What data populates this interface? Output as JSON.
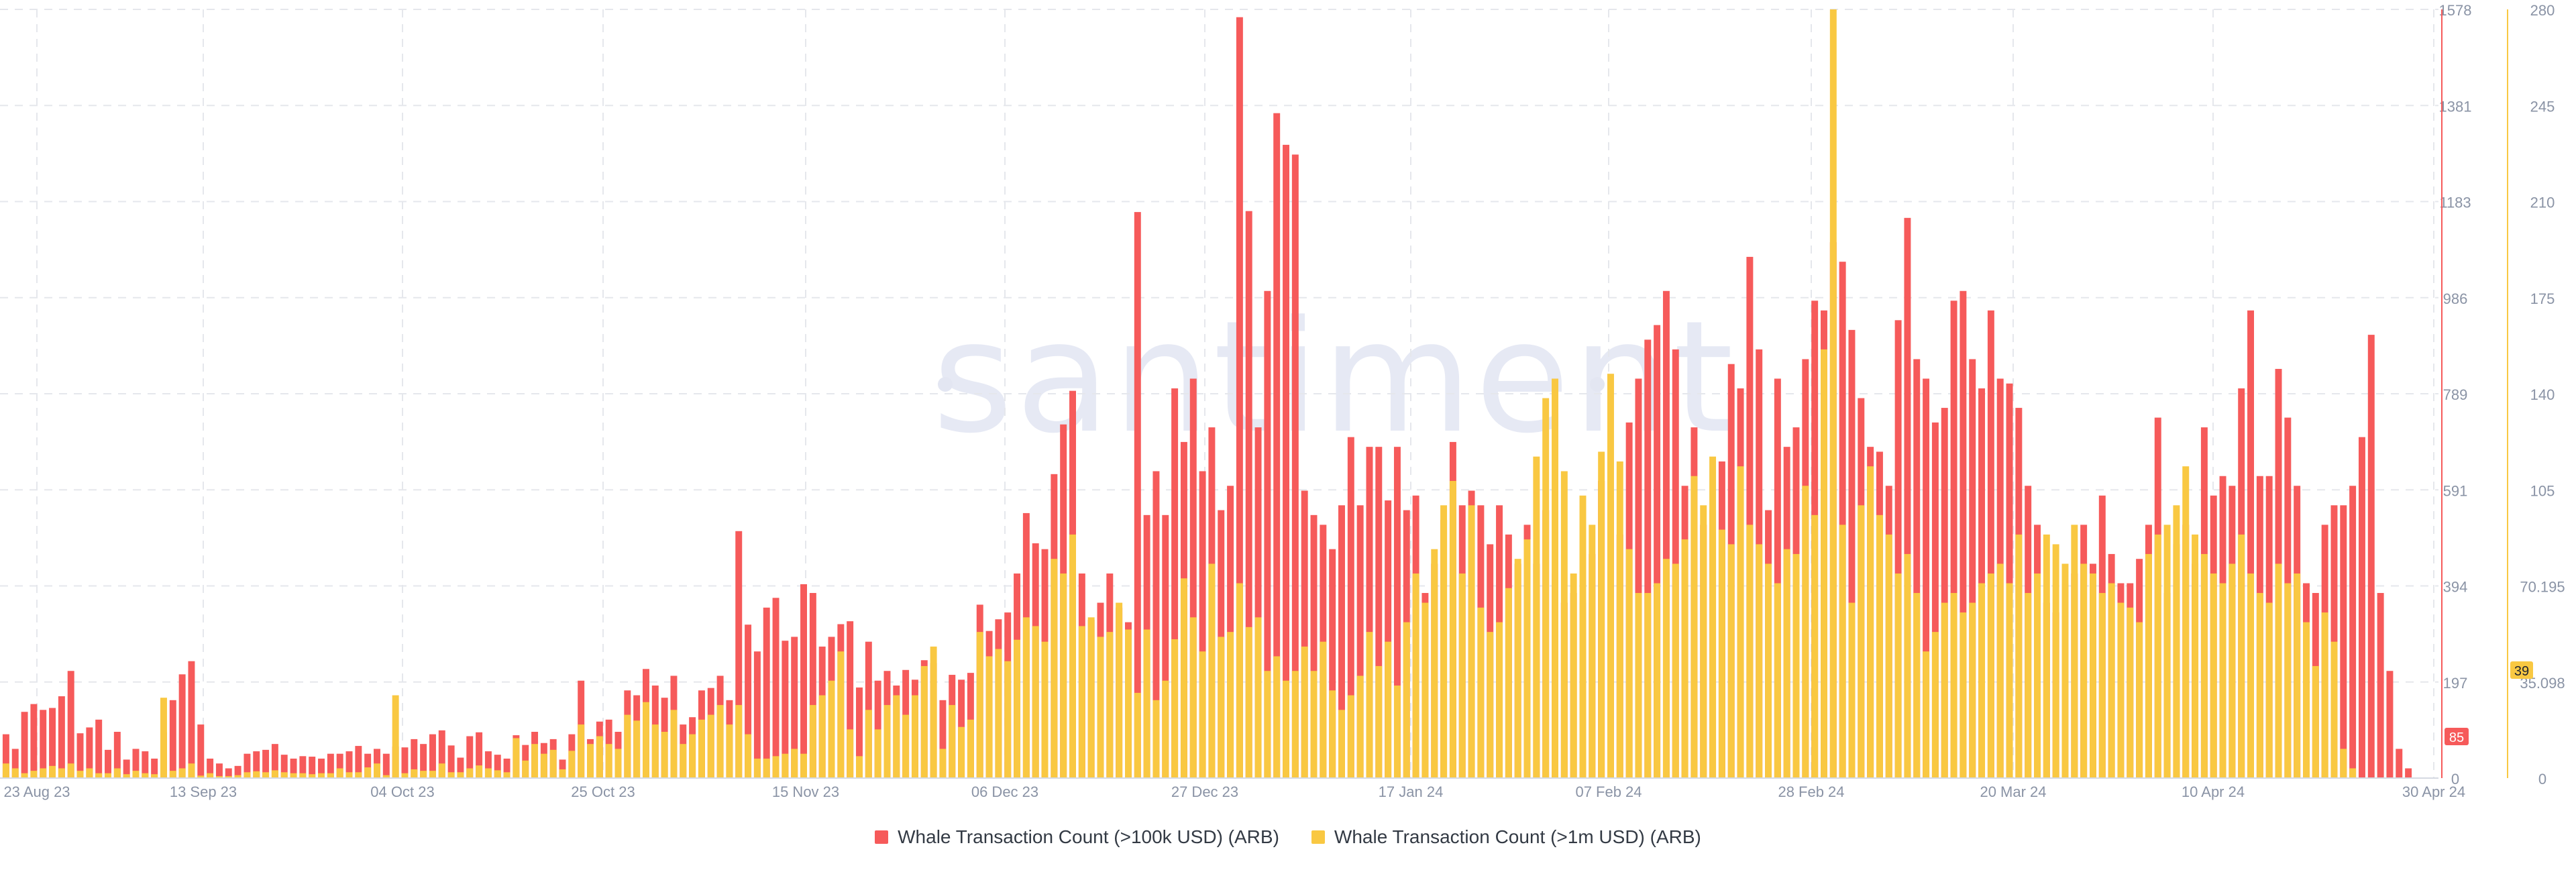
{
  "watermark": "santiment",
  "colors": {
    "series_100k": "#f65a5a",
    "series_1m": "#f9c842",
    "grid": "#e5e7ec",
    "axis_text": "#8a93a5"
  },
  "legend": [
    {
      "label": "Whale Transaction Count (>100k USD) (ARB)",
      "color": "#f65a5a"
    },
    {
      "label": "Whale Transaction Count (>1m USD) (ARB)",
      "color": "#f9c842"
    }
  ],
  "badges": {
    "left_value": "85",
    "right_value": "39"
  },
  "chart_data": {
    "type": "bar",
    "x_tick_labels": [
      "23 Aug 23",
      "13 Sep 23",
      "04 Oct 23",
      "25 Oct 23",
      "15 Nov 23",
      "06 Dec 23",
      "27 Dec 23",
      "17 Jan 24",
      "07 Feb 24",
      "28 Feb 24",
      "20 Mar 24",
      "10 Apr 24",
      "30 Apr 24"
    ],
    "y_left": {
      "label": "",
      "ylim": [
        0,
        1578
      ],
      "ticks": [
        "0",
        "197",
        "394",
        "591",
        "789",
        "986",
        "1183",
        "1381",
        "1578"
      ]
    },
    "y_right": {
      "label": "",
      "ylim": [
        0,
        280
      ],
      "ticks": [
        "0",
        "35.098",
        "70.195",
        "105",
        "140",
        "175",
        "210",
        "245",
        "280"
      ]
    },
    "grid": true,
    "legend_position": "bottom",
    "series": [
      {
        "name": "Whale Transaction Count (>100k USD) (ARB)",
        "axis": "left",
        "values": [
          90,
          60,
          136,
          152,
          140,
          144,
          168,
          220,
          92,
          104,
          120,
          58,
          95,
          38,
          60,
          55,
          40,
          94,
          160,
          213,
          240,
          110,
          40,
          30,
          20,
          25,
          50,
          55,
          58,
          70,
          48,
          40,
          45,
          44,
          40,
          50,
          50,
          55,
          66,
          50,
          60,
          50,
          65,
          63,
          80,
          70,
          90,
          98,
          67,
          42,
          86,
          94,
          55,
          48,
          40,
          88,
          68,
          95,
          72,
          80,
          38,
          90,
          200,
          80,
          116,
          120,
          95,
          180,
          170,
          224,
          190,
          165,
          210,
          110,
          125,
          180,
          185,
          210,
          160,
          507,
          315,
          260,
          350,
          370,
          282,
          290,
          398,
          380,
          270,
          290,
          316,
          322,
          186,
          280,
          200,
          220,
          190,
          222,
          202,
          242,
          236,
          160,
          212,
          202,
          216,
          356,
          302,
          326,
          340,
          420,
          544,
          482,
          470,
          624,
          726,
          795,
          420,
          325,
          360,
          420,
          350,
          320,
          1162,
          540,
          630,
          540,
          800,
          690,
          820,
          630,
          720,
          550,
          600,
          1562,
          1164,
          720,
          1000,
          1365,
          1300,
          1280,
          590,
          540,
          520,
          470,
          560,
          700,
          560,
          680,
          680,
          570,
          680,
          550,
          580,
          380,
          440,
          530,
          690,
          560,
          590,
          560,
          480,
          560,
          500,
          440,
          520,
          440,
          550,
          420,
          360,
          380,
          360,
          460,
          610,
          570,
          500,
          730,
          820,
          900,
          930,
          1000,
          880,
          600,
          720,
          520,
          550,
          650,
          850,
          800,
          1070,
          880,
          550,
          820,
          680,
          720,
          860,
          980,
          960,
          1100,
          1060,
          920,
          780,
          680,
          670,
          600,
          940,
          1150,
          860,
          820,
          730,
          760,
          980,
          1000,
          860,
          800,
          960,
          820,
          810,
          760,
          600,
          520,
          360,
          340,
          400,
          420,
          520,
          440,
          580,
          460,
          400,
          400,
          450,
          520,
          740,
          380,
          480,
          520,
          440,
          720,
          580,
          620,
          600,
          800,
          960,
          620,
          620,
          840,
          740,
          600,
          400,
          380,
          520,
          560,
          560,
          600,
          700,
          910,
          380,
          220,
          60,
          20
        ]
      },
      {
        "name": "Whale Transaction Count (>1m USD) (ARB)",
        "axis": "left",
        "values": [
          30,
          20,
          10,
          15,
          20,
          25,
          20,
          30,
          15,
          20,
          10,
          10,
          20,
          8,
          15,
          10,
          8,
          165,
          15,
          20,
          30,
          5,
          10,
          4,
          4,
          6,
          12,
          14,
          12,
          16,
          12,
          10,
          10,
          8,
          10,
          10,
          20,
          12,
          12,
          22,
          30,
          6,
          170,
          10,
          18,
          15,
          15,
          30,
          12,
          12,
          20,
          26,
          20,
          16,
          12,
          82,
          36,
          70,
          50,
          58,
          18,
          56,
          110,
          70,
          86,
          70,
          60,
          130,
          118,
          156,
          110,
          95,
          140,
          70,
          90,
          120,
          130,
          150,
          110,
          150,
          90,
          40,
          40,
          45,
          50,
          60,
          50,
          150,
          170,
          200,
          260,
          100,
          45,
          140,
          100,
          150,
          170,
          130,
          170,
          230,
          270,
          60,
          150,
          105,
          120,
          300,
          250,
          265,
          240,
          284,
          330,
          312,
          280,
          450,
          420,
          500,
          312,
          330,
          290,
          300,
          360,
          305,
          175,
          305,
          160,
          200,
          285,
          410,
          330,
          260,
          440,
          290,
          300,
          400,
          310,
          330,
          220,
          250,
          200,
          220,
          270,
          220,
          280,
          180,
          140,
          170,
          210,
          300,
          230,
          280,
          190,
          320,
          420,
          360,
          470,
          560,
          610,
          420,
          560,
          350,
          300,
          320,
          390,
          450,
          490,
          660,
          780,
          820,
          630,
          420,
          580,
          520,
          670,
          830,
          650,
          470,
          380,
          380,
          400,
          450,
          440,
          490,
          620,
          560,
          660,
          510,
          480,
          640,
          520,
          480,
          440,
          400,
          470,
          460,
          600,
          540,
          880,
          1578,
          520,
          360,
          560,
          640,
          540,
          500,
          420,
          460,
          380,
          260,
          300,
          360,
          380,
          340,
          360,
          400,
          420,
          440,
          400,
          500,
          380,
          420,
          500,
          480,
          440,
          520,
          440,
          420,
          380,
          400,
          360,
          350,
          320,
          460,
          500,
          520,
          560,
          640,
          500,
          460,
          420,
          400,
          440,
          500,
          420,
          380,
          360,
          440,
          400,
          420,
          320,
          230,
          340,
          280,
          60,
          20
        ]
      }
    ]
  }
}
